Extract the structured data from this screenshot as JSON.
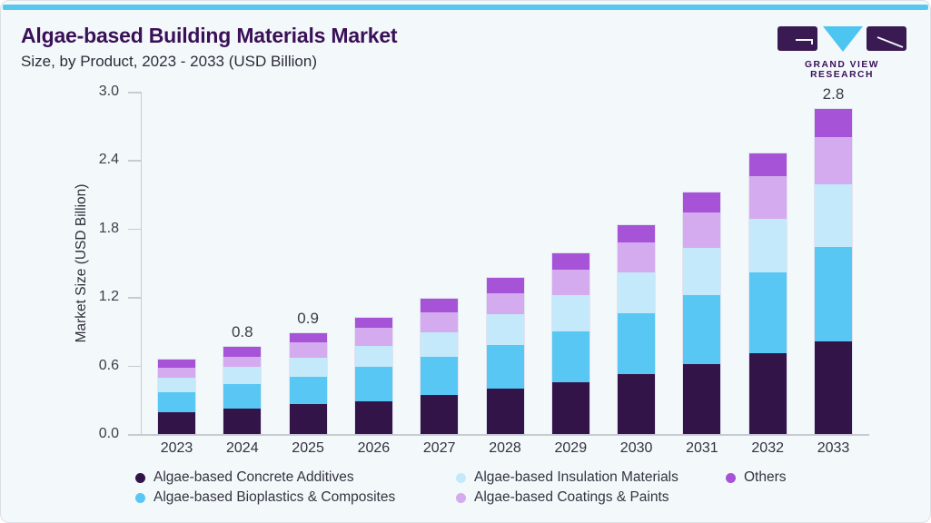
{
  "header": {
    "title": "Algae-based Building Materials Market",
    "subtitle": "Size, by Product, 2023 - 2033 (USD Billion)",
    "logo_text": "GRAND VIEW RESEARCH"
  },
  "chart_data": {
    "type": "bar",
    "stacked": true,
    "title": "Algae-based Building Materials Market Size, by Product, 2023 - 2033 (USD Billion)",
    "xlabel": "",
    "ylabel": "Market Size (USD Billion)",
    "ylim": [
      0,
      3.0
    ],
    "yticks": [
      0.0,
      0.6,
      1.2,
      1.8,
      2.4,
      3.0
    ],
    "grid": false,
    "legend_position": "bottom",
    "categories": [
      "2023",
      "2024",
      "2025",
      "2026",
      "2027",
      "2028",
      "2029",
      "2030",
      "2031",
      "2032",
      "2033"
    ],
    "series": [
      {
        "name": "Algae-based Concrete Additives",
        "color": "#331449",
        "values": [
          0.19,
          0.22,
          0.26,
          0.29,
          0.34,
          0.395,
          0.455,
          0.525,
          0.61,
          0.705,
          0.81
        ]
      },
      {
        "name": "Algae-based Bioplastics & Composites",
        "color": "#58c7f3",
        "values": [
          0.18,
          0.215,
          0.24,
          0.295,
          0.335,
          0.385,
          0.445,
          0.53,
          0.61,
          0.715,
          0.83
        ]
      },
      {
        "name": "Algae-based Insulation Materials",
        "color": "#c3e9fb",
        "values": [
          0.12,
          0.15,
          0.165,
          0.19,
          0.215,
          0.27,
          0.315,
          0.36,
          0.415,
          0.465,
          0.55
        ]
      },
      {
        "name": "Algae-based Coatings & Paints",
        "color": "#d4abee",
        "values": [
          0.09,
          0.095,
          0.135,
          0.155,
          0.175,
          0.185,
          0.225,
          0.26,
          0.31,
          0.375,
          0.415
        ]
      },
      {
        "name": "Others",
        "color": "#a653d8",
        "values": [
          0.075,
          0.08,
          0.085,
          0.09,
          0.12,
          0.13,
          0.14,
          0.155,
          0.17,
          0.2,
          0.24
        ]
      }
    ],
    "totals": [
      0.655,
      0.76,
      0.885,
      1.02,
      1.185,
      1.365,
      1.58,
      1.83,
      2.115,
      2.46,
      2.845
    ],
    "bar_labels": [
      "",
      "0.8",
      "0.9",
      "",
      "",
      "",
      "",
      "",
      "",
      "",
      "2.8"
    ],
    "legend_rows": [
      [
        0,
        2,
        4
      ],
      [
        1,
        3
      ]
    ]
  },
  "colors": {
    "accent": "#58c7ef",
    "title": "#3a1057",
    "subtitle": "#2d2d3a",
    "card_bg": "#f3f8fb",
    "axis": "#c7ccd3",
    "tick_text": "#3d3d49",
    "logo_dark": "#3a1a52",
    "logo_blue": "#4cc5f1"
  }
}
